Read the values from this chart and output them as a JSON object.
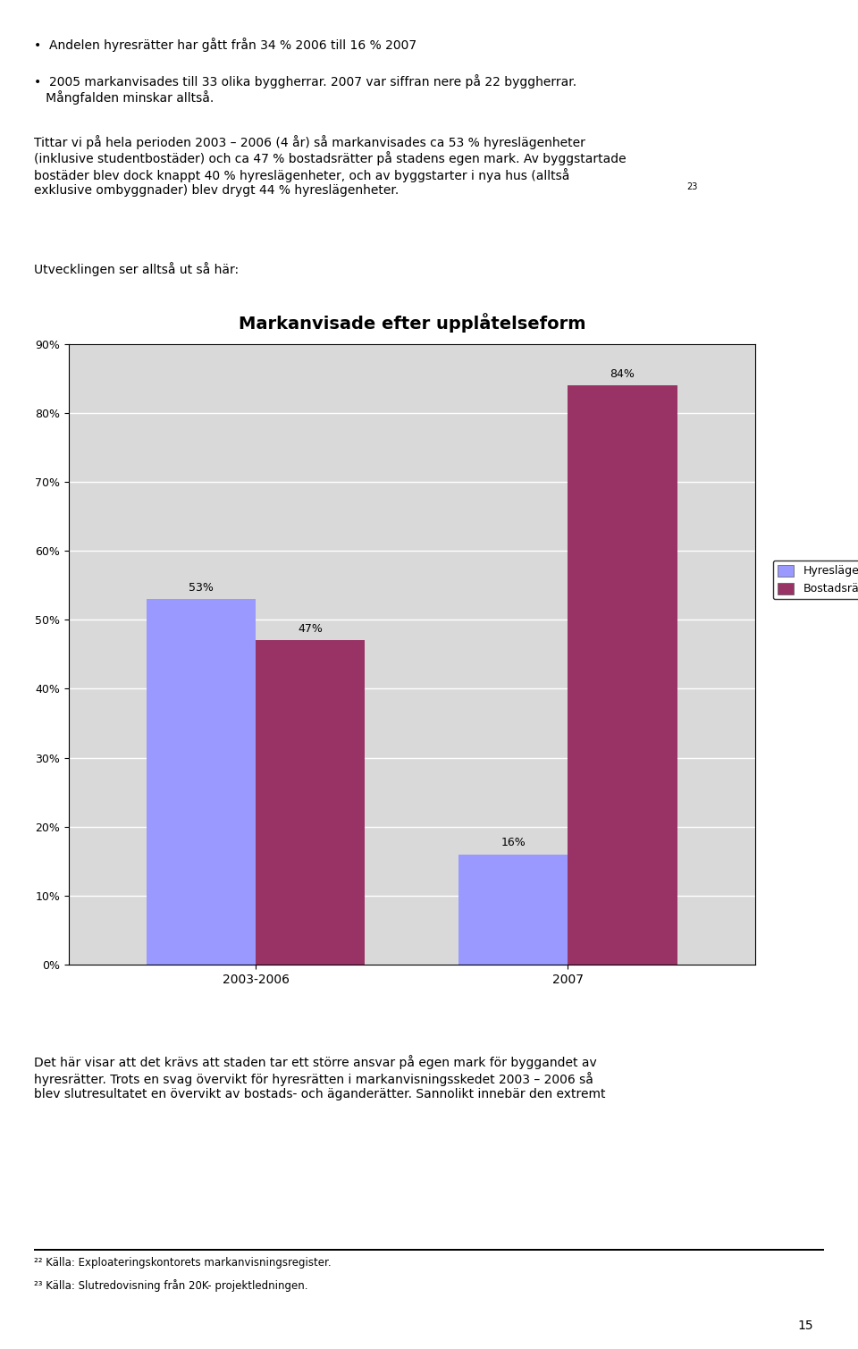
{
  "title": "Markanvisade efter upplåtelseform",
  "title_fontsize": 14,
  "title_fontweight": "bold",
  "groups": [
    "2003-2006",
    "2007"
  ],
  "series": [
    {
      "name": "Hyreslägenheter",
      "values": [
        53,
        16
      ],
      "color": "#9999FF"
    },
    {
      "name": "Bostadsrätter",
      "values": [
        47,
        84
      ],
      "color": "#993366"
    }
  ],
  "ylim": [
    0,
    90
  ],
  "yticks": [
    0,
    10,
    20,
    30,
    40,
    50,
    60,
    70,
    80,
    90
  ],
  "yticklabels": [
    "0%",
    "10%",
    "20%",
    "30%",
    "40%",
    "50%",
    "60%",
    "70%",
    "80%",
    "90%"
  ],
  "bar_width": 0.35,
  "chart_bg": "#D9D9D9",
  "grid_color": "#FFFFFF",
  "text_color": "#000000"
}
